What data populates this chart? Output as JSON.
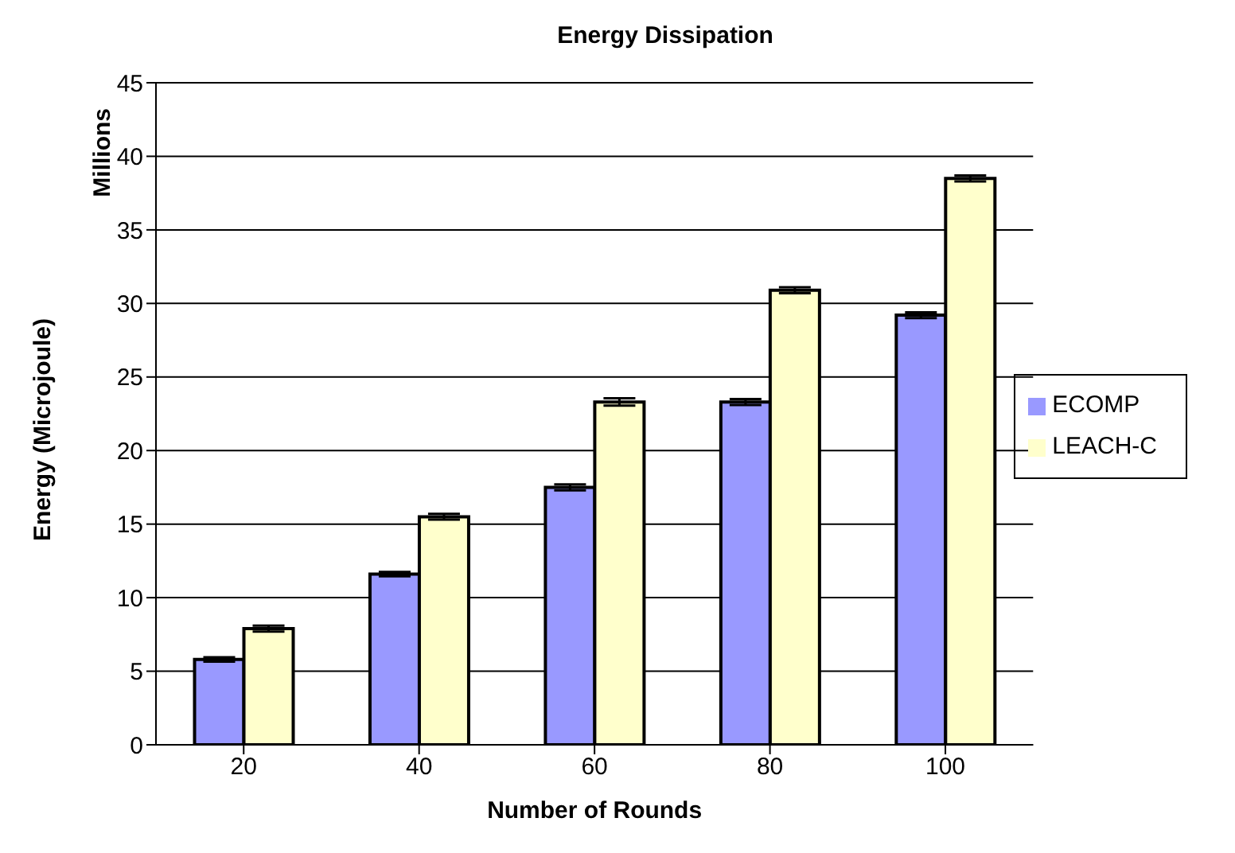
{
  "chart_data": {
    "type": "bar",
    "title": "Energy Dissipation",
    "xlabel": "Number of Rounds",
    "ylabel": "Energy (Microjoule)",
    "annotations": [
      "Millions"
    ],
    "categories": [
      "20",
      "40",
      "60",
      "80",
      "100"
    ],
    "series": [
      {
        "name": "ECOMP",
        "color": "#9999ff",
        "values": [
          5.8,
          11.6,
          17.5,
          23.3,
          29.2
        ],
        "errors": [
          0.15,
          0.15,
          0.2,
          0.2,
          0.2
        ]
      },
      {
        "name": "LEACH-C",
        "color": "#ffffcc",
        "values": [
          7.9,
          15.5,
          23.3,
          30.9,
          38.5
        ],
        "errors": [
          0.2,
          0.2,
          0.25,
          0.2,
          0.2
        ]
      }
    ],
    "ylim": [
      0,
      45
    ],
    "yticks": [
      0,
      5,
      10,
      15,
      20,
      25,
      30,
      35,
      40,
      45
    ],
    "grid": "y",
    "legend": "right"
  }
}
